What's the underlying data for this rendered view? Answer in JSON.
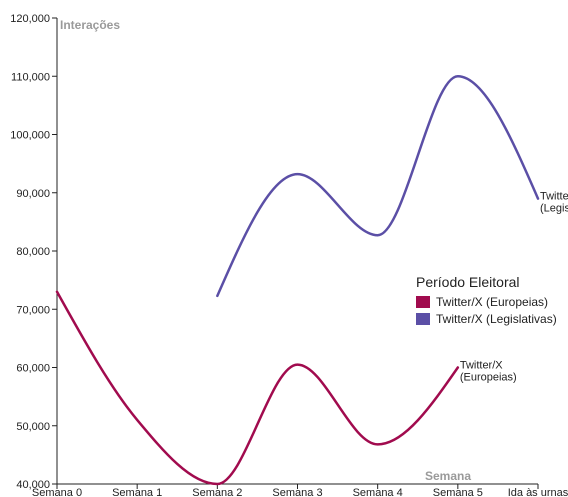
{
  "chart_data": {
    "type": "line",
    "xlabel": "Semana",
    "ylabel": "Interações",
    "categories": [
      "Semana 0",
      "Semana 1",
      "Semana 2",
      "Semana 3",
      "Semana 4",
      "Semana 5",
      "Ida às urnas"
    ],
    "ylim": [
      40000,
      120000
    ],
    "yticks": [
      40000,
      50000,
      60000,
      70000,
      80000,
      90000,
      100000,
      110000,
      120000
    ],
    "ytick_labels": [
      "40,000",
      "50,000",
      "60,000",
      "70,000",
      "80,000",
      "90,000",
      "100,000",
      "110,000",
      "120,000"
    ],
    "grid": false,
    "legend": {
      "title": "Período Eleitoral",
      "position": "right"
    },
    "series": [
      {
        "name": "Twitter/X (Europeias)",
        "end_label": [
          "Twitter/X",
          "(Europeias)"
        ],
        "color": "#a10b4e",
        "x": [
          0,
          1,
          2,
          3,
          4,
          5
        ],
        "values": [
          73000,
          51000,
          40000,
          60500,
          46800,
          60000
        ]
      },
      {
        "name": "Twitter/X (Legislativas)",
        "end_label": [
          "Twitter/X",
          "(Legislativas)"
        ],
        "color": "#5b4fa6",
        "x": [
          2,
          3,
          4,
          5,
          6
        ],
        "values": [
          72300,
          93200,
          82700,
          110000,
          89000
        ]
      }
    ]
  }
}
